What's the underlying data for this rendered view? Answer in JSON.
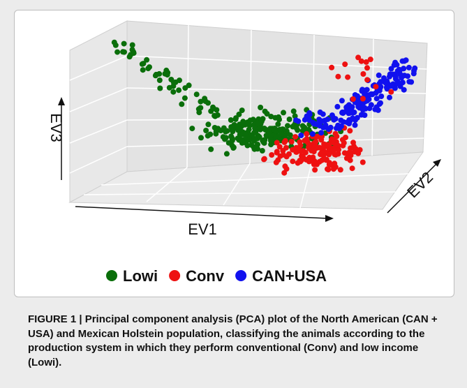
{
  "figure": {
    "axis_labels": {
      "x": "EV1",
      "y": "EV2",
      "z": "EV3"
    },
    "legend": [
      {
        "name": "Lowi",
        "color": "#0a6e0a"
      },
      {
        "name": "Conv",
        "color": "#ee1111"
      },
      {
        "name": "CAN+USA",
        "color": "#1111ee"
      }
    ]
  },
  "caption": "FIGURE 1 | Principal component analysis (PCA) plot of the North American (CAN + USA) and Mexican Holstein population, classifying the animals according to the production system in which they perform conventional (Conv) and low income (Lowi)."
}
